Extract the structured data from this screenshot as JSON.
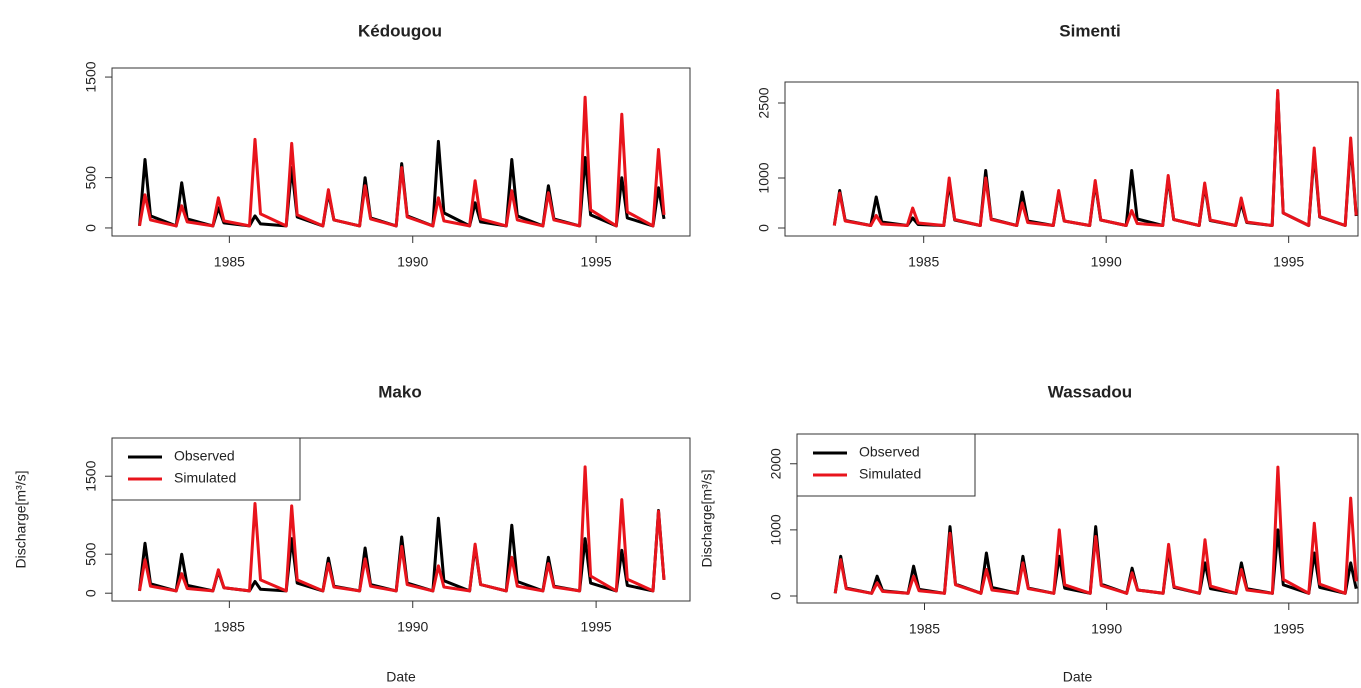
{
  "chart_data": [
    {
      "type": "line",
      "title": "Kédougou",
      "x": [
        1982.55,
        1982.7,
        1982.85,
        1983.55,
        1983.7,
        1983.85,
        1984.55,
        1984.7,
        1984.85,
        1985.55,
        1985.7,
        1985.85,
        1986.55,
        1986.7,
        1986.85,
        1987.55,
        1987.7,
        1987.85,
        1988.55,
        1988.7,
        1988.85,
        1989.55,
        1989.7,
        1989.85,
        1990.55,
        1990.7,
        1990.85,
        1991.55,
        1991.7,
        1991.85,
        1992.55,
        1992.7,
        1992.85,
        1993.55,
        1993.7,
        1993.85,
        1994.55,
        1994.7,
        1994.85,
        1995.55,
        1995.7,
        1995.85,
        1996.55,
        1996.7,
        1996.85
      ],
      "series": [
        {
          "name": "Observed",
          "color": "#000000",
          "values": [
            20,
            680,
            120,
            20,
            450,
            90,
            20,
            200,
            50,
            20,
            120,
            40,
            20,
            600,
            110,
            20,
            350,
            80,
            20,
            500,
            100,
            20,
            640,
            120,
            20,
            860,
            150,
            20,
            250,
            60,
            20,
            680,
            120,
            20,
            420,
            90,
            20,
            700,
            130,
            20,
            500,
            100,
            20,
            400,
            90
          ]
        },
        {
          "name": "Simulated",
          "color": "#e8141c",
          "values": [
            20,
            330,
            80,
            20,
            220,
            60,
            20,
            300,
            70,
            20,
            880,
            140,
            20,
            840,
            130,
            20,
            380,
            80,
            20,
            420,
            90,
            20,
            600,
            110,
            20,
            300,
            70,
            20,
            470,
            90,
            20,
            370,
            80,
            20,
            350,
            80,
            20,
            1300,
            180,
            20,
            1130,
            160,
            20,
            780,
            130
          ]
        }
      ],
      "xlim": [
        1981.8,
        1997.56
      ],
      "xticks": [
        1985,
        1990,
        1995
      ],
      "ylim": [
        -80,
        1590
      ],
      "yticks": [
        0,
        500,
        1500
      ]
    },
    {
      "type": "line",
      "title": "Simenti",
      "x": [
        1982.55,
        1982.7,
        1982.85,
        1983.55,
        1983.7,
        1983.85,
        1984.55,
        1984.7,
        1984.85,
        1985.55,
        1985.7,
        1985.85,
        1986.55,
        1986.7,
        1986.85,
        1987.55,
        1987.7,
        1987.85,
        1988.55,
        1988.7,
        1988.85,
        1989.55,
        1989.7,
        1989.85,
        1990.55,
        1990.7,
        1990.85,
        1991.55,
        1991.7,
        1991.85,
        1992.55,
        1992.7,
        1992.85,
        1993.55,
        1993.7,
        1993.85,
        1994.55,
        1994.7,
        1994.85,
        1995.55,
        1995.7,
        1995.85,
        1996.55,
        1996.7,
        1996.85
      ],
      "series": [
        {
          "name": "Observed",
          "color": "#000000",
          "values": [
            50,
            750,
            150,
            50,
            620,
            120,
            50,
            200,
            70,
            50,
            900,
            160,
            50,
            1150,
            180,
            50,
            720,
            140,
            50,
            700,
            140,
            50,
            900,
            160,
            50,
            1150,
            180,
            50,
            1000,
            170,
            50,
            850,
            150,
            50,
            500,
            110,
            50,
            2700,
            300,
            50,
            1500,
            220,
            50,
            1700,
            240
          ]
        },
        {
          "name": "Simulated",
          "color": "#e8141c",
          "values": [
            50,
            700,
            140,
            50,
            250,
            80,
            50,
            400,
            100,
            50,
            1000,
            170,
            50,
            1000,
            170,
            50,
            500,
            110,
            50,
            750,
            140,
            50,
            950,
            160,
            50,
            350,
            90,
            50,
            1050,
            170,
            50,
            900,
            160,
            50,
            600,
            120,
            50,
            2750,
            300,
            50,
            1600,
            230,
            50,
            1800,
            250
          ]
        }
      ],
      "xlim": [
        1981.2,
        1996.9
      ],
      "xticks": [
        1985,
        1990,
        1995
      ],
      "ylim": [
        -160,
        2920
      ],
      "yticks": [
        0,
        1000,
        2500
      ]
    },
    {
      "type": "line",
      "title": "Mako",
      "xlabel": "Date",
      "ylabel": "Discharge[m³/s]",
      "legend": "top-left",
      "x": [
        1982.55,
        1982.7,
        1982.85,
        1983.55,
        1983.7,
        1983.85,
        1984.55,
        1984.7,
        1984.85,
        1985.55,
        1985.7,
        1985.85,
        1986.55,
        1986.7,
        1986.85,
        1987.55,
        1987.7,
        1987.85,
        1988.55,
        1988.7,
        1988.85,
        1989.55,
        1989.7,
        1989.85,
        1990.55,
        1990.7,
        1990.85,
        1991.55,
        1991.7,
        1991.85,
        1992.55,
        1992.7,
        1992.85,
        1993.55,
        1993.7,
        1993.85,
        1994.55,
        1994.7,
        1994.85,
        1995.55,
        1995.7,
        1995.85,
        1996.55,
        1996.7,
        1996.85
      ],
      "series": [
        {
          "name": "Observed",
          "color": "#000000",
          "values": [
            30,
            640,
            120,
            30,
            500,
            100,
            30,
            280,
            70,
            30,
            150,
            50,
            30,
            700,
            130,
            30,
            450,
            90,
            30,
            580,
            110,
            30,
            720,
            130,
            30,
            960,
            160,
            30,
            600,
            110,
            30,
            870,
            150,
            30,
            460,
            90,
            30,
            700,
            130,
            30,
            550,
            100,
            30,
            1060,
            170
          ]
        },
        {
          "name": "Simulated",
          "color": "#e8141c",
          "values": [
            30,
            430,
            90,
            30,
            250,
            60,
            30,
            300,
            70,
            30,
            1150,
            170,
            30,
            1120,
            170,
            30,
            380,
            80,
            30,
            440,
            90,
            30,
            600,
            110,
            30,
            350,
            80,
            30,
            630,
            110,
            30,
            460,
            90,
            30,
            380,
            80,
            30,
            1620,
            220,
            30,
            1200,
            180,
            30,
            1050,
            170
          ]
        }
      ],
      "xlim": [
        1981.8,
        1997.56
      ],
      "xticks": [
        1985,
        1990,
        1995
      ],
      "ylim": [
        -100,
        1990
      ],
      "yticks": [
        0,
        500,
        1500
      ]
    },
    {
      "type": "line",
      "title": "Wassadou",
      "xlabel": "Date",
      "ylabel": "Discharge[m³/s]",
      "legend": "top-left",
      "x": [
        1982.55,
        1982.7,
        1982.85,
        1983.55,
        1983.7,
        1983.85,
        1984.55,
        1984.7,
        1984.85,
        1985.55,
        1985.7,
        1985.85,
        1986.55,
        1986.7,
        1986.85,
        1987.55,
        1987.7,
        1987.85,
        1988.55,
        1988.7,
        1988.85,
        1989.55,
        1989.7,
        1989.85,
        1990.55,
        1990.7,
        1990.85,
        1991.55,
        1991.7,
        1991.85,
        1992.55,
        1992.7,
        1992.85,
        1993.55,
        1993.7,
        1993.85,
        1994.55,
        1994.7,
        1994.85,
        1995.55,
        1995.7,
        1995.85,
        1996.55,
        1996.7,
        1996.85
      ],
      "series": [
        {
          "name": "Observed",
          "color": "#000000",
          "values": [
            40,
            600,
            120,
            40,
            300,
            80,
            40,
            450,
            100,
            40,
            1050,
            180,
            40,
            650,
            130,
            40,
            600,
            120,
            40,
            600,
            120,
            40,
            1050,
            180,
            40,
            420,
            90,
            40,
            700,
            130,
            40,
            500,
            110,
            40,
            500,
            110,
            40,
            1000,
            170,
            40,
            650,
            130,
            40,
            500,
            110
          ]
        },
        {
          "name": "Simulated",
          "color": "#e8141c",
          "values": [
            40,
            550,
            110,
            40,
            200,
            70,
            40,
            300,
            80,
            40,
            950,
            170,
            40,
            400,
            90,
            40,
            500,
            110,
            40,
            1000,
            170,
            40,
            900,
            160,
            40,
            350,
            90,
            40,
            780,
            140,
            40,
            850,
            150,
            40,
            400,
            90,
            40,
            1950,
            250,
            40,
            1100,
            180,
            40,
            1480,
            220
          ]
        }
      ],
      "xlim": [
        1981.5,
        1996.9
      ],
      "xticks": [
        1985,
        1990,
        1995
      ],
      "ylim": [
        -106,
        2450
      ],
      "yticks": [
        0,
        1000,
        2000
      ]
    }
  ]
}
